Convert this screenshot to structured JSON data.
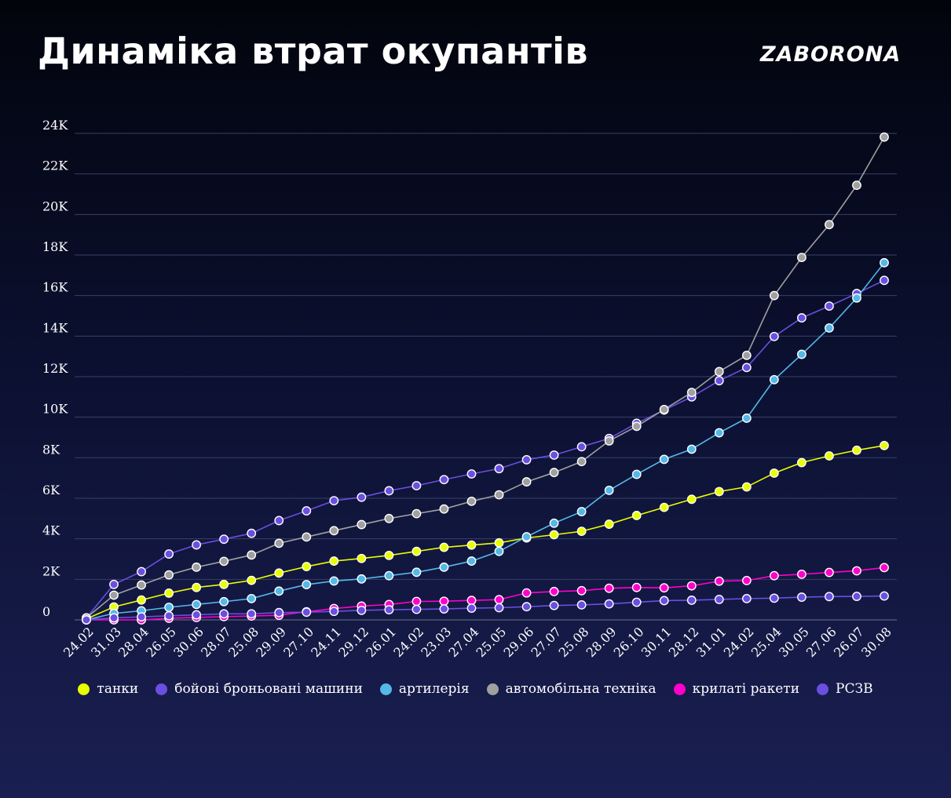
{
  "header": {
    "title": "Динаміка втрат окупантів",
    "logo": "ZABORONA"
  },
  "chart_data": {
    "type": "line",
    "x": [
      "24.02",
      "31.03",
      "28.04",
      "26.05",
      "30.06",
      "28.07",
      "25.08",
      "29.09",
      "27.10",
      "24.11",
      "29.12",
      "26.01",
      "24.02",
      "23.03",
      "27.04",
      "25.05",
      "29.06",
      "27.07",
      "25.08",
      "28.09",
      "26.10",
      "30.11",
      "28.12",
      "31.01",
      "24.02",
      "25.04",
      "30.05",
      "27.06",
      "26.07",
      "30.08"
    ],
    "yticks": [
      0,
      2000,
      4000,
      6000,
      8000,
      10000,
      12000,
      14000,
      16000,
      18000,
      20000,
      22000,
      24000
    ],
    "ytick_labels": [
      "0",
      "2K",
      "4K",
      "6K",
      "8K",
      "10K",
      "12K",
      "14K",
      "16K",
      "18K",
      "20K",
      "22K",
      "24K"
    ],
    "ylim": [
      0,
      24000
    ],
    "grid": true,
    "legend_position": "bottom",
    "series": [
      {
        "name": "танки",
        "color": "#e8ff00",
        "values": [
          50,
          640,
          980,
          1320,
          1600,
          1750,
          1950,
          2310,
          2630,
          2900,
          3030,
          3180,
          3380,
          3580,
          3690,
          3800,
          4040,
          4200,
          4370,
          4720,
          5150,
          5550,
          5950,
          6330,
          6560,
          7240,
          7760,
          8090,
          8370,
          8600
        ]
      },
      {
        "name": "бойові броньовані машини",
        "color": "#6a4fe0",
        "values": [
          100,
          1750,
          2380,
          3250,
          3700,
          3980,
          4270,
          4900,
          5380,
          5880,
          6050,
          6370,
          6620,
          6920,
          7200,
          7460,
          7900,
          8130,
          8540,
          8950,
          9700,
          10350,
          11000,
          11800,
          12450,
          13980,
          14900,
          15480,
          16100,
          16750
        ]
      },
      {
        "name": "артилерія",
        "color": "#54b8e8",
        "values": [
          0,
          320,
          450,
          620,
          760,
          900,
          1050,
          1420,
          1740,
          1920,
          2020,
          2180,
          2350,
          2600,
          2900,
          3380,
          4100,
          4770,
          5340,
          6390,
          7180,
          7920,
          8420,
          9230,
          9950,
          11850,
          13100,
          14400,
          15880,
          17620
        ]
      },
      {
        "name": "автомобільна техніка",
        "color": "#a0a0a0",
        "values": [
          100,
          1220,
          1720,
          2220,
          2600,
          2890,
          3200,
          3780,
          4090,
          4400,
          4700,
          5000,
          5240,
          5470,
          5850,
          6170,
          6810,
          7270,
          7810,
          8830,
          9550,
          10380,
          11220,
          12250,
          13050,
          16000,
          17880,
          19500,
          21440,
          23820
        ]
      },
      {
        "name": "крилаті ракети",
        "color": "#ff00cc",
        "values": [
          0,
          0,
          0,
          80,
          120,
          160,
          190,
          230,
          400,
          560,
          680,
          760,
          910,
          920,
          960,
          1000,
          1330,
          1400,
          1440,
          1560,
          1600,
          1580,
          1680,
          1910,
          1940,
          2180,
          2250,
          2340,
          2420,
          2580
        ]
      },
      {
        "name": "РСЗВ",
        "color": "#6a4fe0",
        "values": [
          0,
          100,
          150,
          200,
          250,
          300,
          300,
          360,
          380,
          420,
          470,
          500,
          520,
          540,
          580,
          600,
          650,
          710,
          740,
          790,
          870,
          950,
          970,
          1010,
          1050,
          1070,
          1120,
          1150,
          1160,
          1180
        ]
      }
    ]
  }
}
